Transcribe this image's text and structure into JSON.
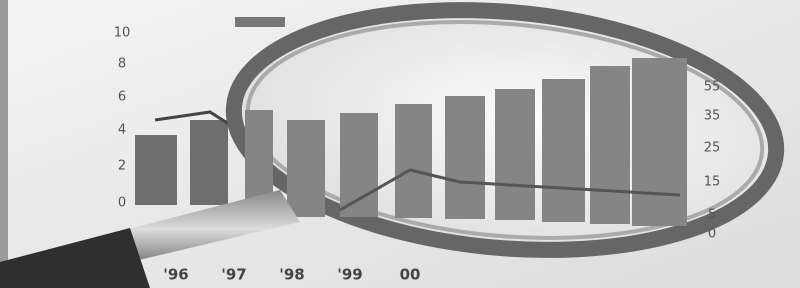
{
  "photo": {
    "left_axis_labels": [
      "10",
      "8",
      "6",
      "4",
      "2",
      "0"
    ],
    "right_axis_labels": [
      "55",
      "35",
      "25",
      "15",
      "5",
      "0"
    ],
    "x_labels": [
      "'96",
      "'97",
      "'98",
      "'99",
      "00"
    ]
  }
}
